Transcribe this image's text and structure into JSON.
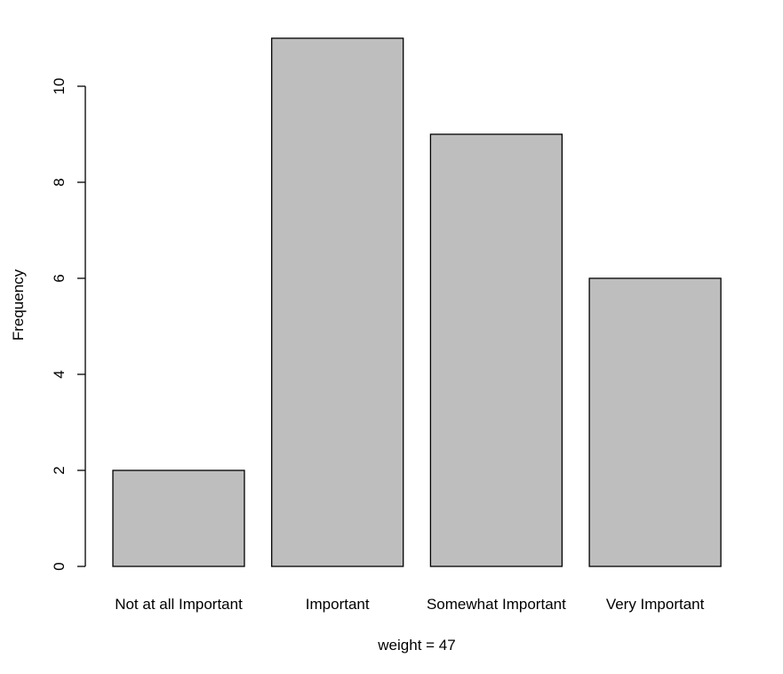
{
  "chart_data": {
    "type": "bar",
    "categories": [
      "Not at all Important",
      "Important",
      "Somewhat Important",
      "Very Important"
    ],
    "values": [
      2,
      11,
      9,
      6
    ],
    "title": "",
    "xlabel": "weight = 47",
    "ylabel": "Frequency",
    "ylim": [
      0,
      11
    ],
    "yticks": [
      "0",
      "2",
      "4",
      "6",
      "8",
      "10"
    ],
    "grid": false,
    "bar_color": "#bebebe",
    "bar_border_color": "#000000"
  }
}
